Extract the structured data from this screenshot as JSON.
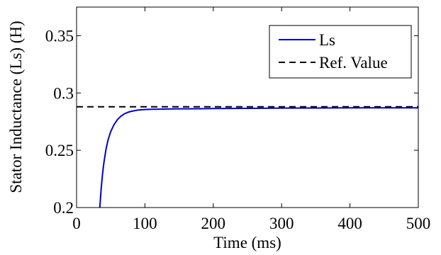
{
  "chart_data": {
    "type": "line",
    "title": "",
    "xlabel": "Time (ms)",
    "ylabel": "Stator Inductance (Ls) (H)",
    "xlim": [
      0,
      500
    ],
    "ylim": [
      0.2,
      0.375
    ],
    "xticks": [
      0,
      100,
      200,
      300,
      400,
      500
    ],
    "xtick_labels": [
      "0",
      "100",
      "200",
      "300",
      "400",
      "500"
    ],
    "yticks": [
      0.2,
      0.25,
      0.3,
      0.35
    ],
    "ytick_labels": [
      "0.2",
      "0.25",
      "0.3",
      "0.35"
    ],
    "grid": false,
    "legend_position": "top-right",
    "series": [
      {
        "name": "Ls",
        "color": "#0000cc",
        "style": "solid",
        "x": [
          34,
          36,
          38,
          40,
          43,
          46,
          50,
          55,
          60,
          65,
          70,
          75,
          80,
          90,
          100,
          110,
          120,
          140,
          160,
          180,
          200,
          250,
          300,
          350,
          400,
          450,
          500
        ],
        "y": [
          0.2,
          0.2165,
          0.2293,
          0.2393,
          0.2507,
          0.2589,
          0.2664,
          0.2726,
          0.2769,
          0.2798,
          0.2818,
          0.2831,
          0.284,
          0.2851,
          0.2856,
          0.2858,
          0.2859,
          0.2861,
          0.2862,
          0.2863,
          0.2864,
          0.2866,
          0.2868,
          0.2869,
          0.287,
          0.287,
          0.287
        ]
      },
      {
        "name": "Ref. Value",
        "color": "#000000",
        "style": "dashed",
        "x": [
          0,
          500
        ],
        "y": [
          0.288,
          0.288
        ]
      }
    ]
  }
}
